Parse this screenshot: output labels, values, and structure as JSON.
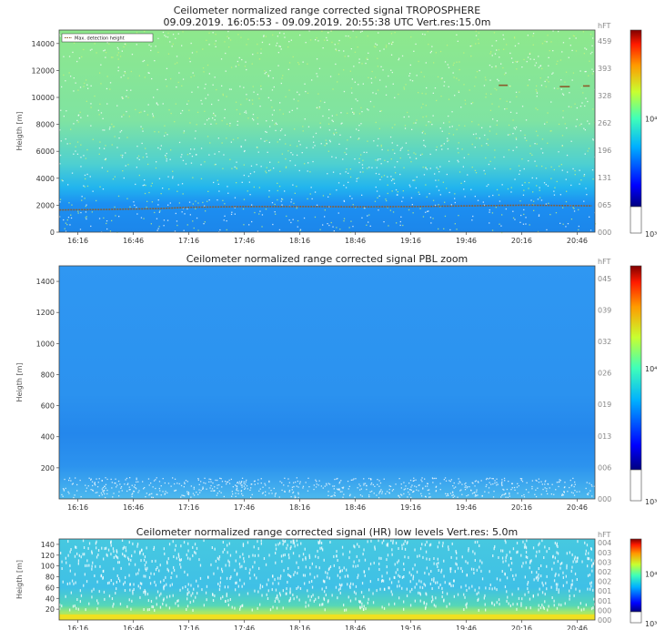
{
  "chart_data": [
    {
      "type": "heatmap",
      "title": "Ceilometer normalized range corrected signal TROPOSPHERE",
      "subtitle": "09.09.2019. 16:05:53 - 09.09.2019. 20:55:38 UTC  Vert.res:15.0m",
      "ylabel": "Heigth [m]",
      "ylim": [
        0,
        15000
      ],
      "y_ticks": [
        "0",
        "2000",
        "4000",
        "6000",
        "8000",
        "10000",
        "12000",
        "14000"
      ],
      "x_ticks": [
        "16:16",
        "16:46",
        "17:16",
        "17:46",
        "18:16",
        "18:46",
        "19:16",
        "19:46",
        "20:16",
        "20:46"
      ],
      "right_axis_label": "hFT",
      "right_ticks": [
        "000",
        "065",
        "131",
        "196",
        "262",
        "328",
        "393",
        "459"
      ],
      "colorbar_labels": [
        "10⁴",
        "10³"
      ],
      "legend": {
        "label": "Max. detection height",
        "placement": "top-left"
      },
      "max_detection_height_m": [
        [
          16.1,
          1650
        ],
        [
          16.5,
          1680
        ],
        [
          17.0,
          1750
        ],
        [
          17.3,
          1850
        ],
        [
          17.8,
          1900
        ],
        [
          18.3,
          1900
        ],
        [
          18.8,
          1880
        ],
        [
          19.3,
          1900
        ],
        [
          19.8,
          1950
        ],
        [
          20.3,
          2000
        ],
        [
          20.9,
          1950
        ]
      ],
      "upper_segments_m": [
        [
          20.06,
          20.14,
          10900
        ],
        [
          20.61,
          20.7,
          10800
        ],
        [
          20.82,
          20.88,
          10850
        ]
      ]
    },
    {
      "type": "heatmap",
      "title": "Ceilometer normalized range corrected signal PBL zoom",
      "ylabel": "Heigth [m]",
      "ylim": [
        0,
        1500
      ],
      "y_ticks": [
        "200",
        "400",
        "600",
        "800",
        "1000",
        "1200",
        "1400"
      ],
      "x_ticks": [
        "16:16",
        "16:46",
        "17:16",
        "17:46",
        "18:16",
        "18:46",
        "19:16",
        "19:46",
        "20:16",
        "20:46"
      ],
      "right_axis_label": "hFT",
      "right_ticks": [
        "000",
        "006",
        "013",
        "019",
        "026",
        "032",
        "039",
        "045"
      ],
      "colorbar_labels": [
        "10⁴",
        "10³"
      ]
    },
    {
      "type": "heatmap",
      "title": "Ceilometer normalized range corrected signal (HR) low levels  Vert.res: 5.0m",
      "ylabel": "Heigth [m]",
      "ylim": [
        0,
        150
      ],
      "y_ticks": [
        "20",
        "40",
        "60",
        "80",
        "100",
        "120",
        "140"
      ],
      "x_ticks": [
        "16:16",
        "16:46",
        "17:16",
        "17:46",
        "18:16",
        "18:46",
        "19:16",
        "19:46",
        "20:16",
        "20:46"
      ],
      "right_axis_label": "hFT",
      "right_ticks": [
        "000",
        "000",
        "001",
        "001",
        "002",
        "002",
        "003",
        "003",
        "004"
      ],
      "colorbar_labels": [
        "10⁴",
        "10³"
      ]
    }
  ]
}
